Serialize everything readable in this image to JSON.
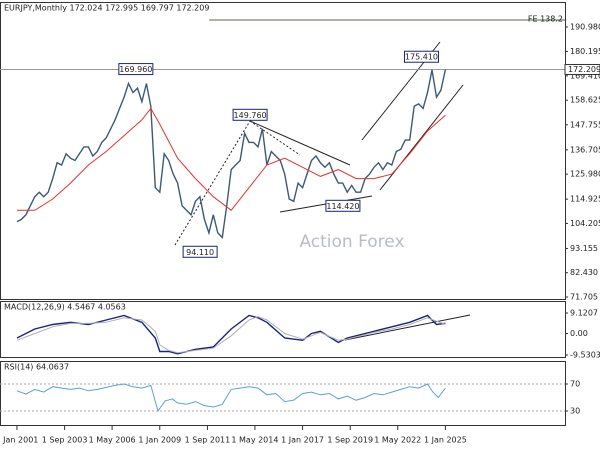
{
  "chart_data": [
    {
      "type": "line",
      "title": "EURJPY,Monthly 172.024 172.995 169.797 172.209",
      "watermark": "Action Forex",
      "xlim": [
        2000.05,
        2031.7
      ],
      "ylim": [
        70.38,
        201.58
      ],
      "yticks": [
        {
          "value": 190.98,
          "label": "190.980"
        },
        180.195,
        {
          "value": 169.41,
          "label": "169.410"
        },
        158.625,
        147.755,
        136.705,
        {
          "value": 125.98,
          "label": "125.980"
        },
        114.925,
        104.205,
        93.155,
        {
          "value": 82.43,
          "label": "82.430"
        },
        71.705
      ],
      "series": [
        {
          "color": "#3d5a73",
          "x": [
            2001,
            2001.25,
            2001.5,
            2001.75,
            2002,
            2002.25,
            2002.5,
            2002.75,
            2003,
            2003.25,
            2003.5,
            2003.75,
            2004,
            2004.25,
            2004.5,
            2004.75,
            2005,
            2005.25,
            2005.5,
            2005.75,
            2006,
            2006.25,
            2006.5,
            2006.75,
            2007,
            2007.25,
            2007.5,
            2007.75,
            2008,
            2008.25,
            2008.5,
            2008.75,
            2009,
            2009.25,
            2009.5,
            2009.75,
            2010,
            2010.25,
            2010.5,
            2010.75,
            2011,
            2011.25,
            2011.5,
            2011.75,
            2012,
            2012.25,
            2012.5,
            2012.75,
            2013,
            2013.25,
            2013.5,
            2013.75,
            2014,
            2014.25,
            2014.5,
            2014.75,
            2015,
            2015.25,
            2015.5,
            2015.75,
            2016,
            2016.25,
            2016.5,
            2016.75,
            2017,
            2017.25,
            2017.5,
            2017.75,
            2018,
            2018.25,
            2018.5,
            2018.75,
            2019,
            2019.25,
            2019.5,
            2019.75,
            2020,
            2020.25,
            2020.5,
            2020.75,
            2021,
            2021.25,
            2021.5,
            2021.75,
            2022,
            2022.25,
            2022.5,
            2022.75,
            2023,
            2023.25,
            2023.5,
            2023.75,
            2024,
            2024.25,
            2024.5,
            2024.75,
            2025
          ],
          "values": [
            105,
            106,
            108,
            112,
            116,
            118,
            116,
            118,
            124,
            131,
            130,
            135,
            133,
            132,
            135,
            138,
            138,
            134,
            136,
            140,
            142,
            146,
            150,
            155,
            160,
            166,
            162,
            164,
            158,
            166,
            156,
            120,
            118,
            135,
            132,
            126,
            122,
            112,
            110,
            108,
            114,
            116,
            106,
            100,
            108,
            100,
            98,
            112,
            128,
            130,
            132,
            144,
            140,
            140,
            138,
            146,
            130,
            136,
            134,
            132,
            126,
            115,
            114,
            122,
            120,
            126,
            132,
            134,
            131,
            129,
            131,
            126,
            122,
            122,
            118,
            121,
            118,
            118,
            124,
            126,
            129,
            131,
            128,
            131,
            130,
            136,
            137,
            141,
            141,
            156,
            157,
            155,
            162,
            172,
            160,
            163,
            172.209
          ]
        },
        {
          "color": "#e8322a",
          "x": [
            2001,
            2002,
            2003,
            2004,
            2005,
            2006,
            2007,
            2008,
            2008.5,
            2009,
            2010,
            2011,
            2012,
            2013,
            2014,
            2015,
            2016,
            2017,
            2018,
            2019,
            2020,
            2021,
            2022,
            2023,
            2024,
            2025
          ],
          "values": [
            110,
            110,
            115,
            122,
            130,
            136,
            143,
            150,
            155,
            148,
            133,
            124,
            116,
            110,
            120,
            130,
            133,
            129,
            125,
            128,
            124,
            124,
            126,
            135,
            145,
            152
          ]
        }
      ],
      "annotations": [
        {
          "x": 2008.5,
          "value": 169.96,
          "label": "169.960"
        },
        {
          "x": 2014.9,
          "value": 149.76,
          "label": "149.760"
        },
        {
          "x": 2012.1,
          "value": 94.11,
          "label": "94.110"
        },
        {
          "x": 2020.1,
          "value": 114.42,
          "label": "114.420"
        },
        {
          "x": 2024.5,
          "value": 175.41,
          "label": "175.410"
        }
      ],
      "levels": [
        {
          "value": 194.07,
          "label": "FE 138.2",
          "x_start": 2011.77,
          "color": "#4a6b4a"
        },
        {
          "value": 172.209,
          "label": "172.209",
          "color": "#999999"
        }
      ]
    },
    {
      "type": "line",
      "title": "MACD(12,26,9) 4.5467 4.0563",
      "xlim": [
        2000.05,
        2031.7
      ],
      "ylim": [
        -10.42,
        14.0
      ],
      "yticks": [
        9.1207,
        {
          "value": 0,
          "label": "0.00"
        },
        -9.5303
      ],
      "series": [
        {
          "color": "#1a237e",
          "x": [
            2001,
            2002,
            2003,
            2004,
            2005,
            2006,
            2007,
            2008,
            2008.75,
            2009,
            2009.5,
            2010,
            2011,
            2012,
            2013,
            2014,
            2014.5,
            2015,
            2016,
            2017,
            2017.5,
            2018,
            2019,
            2019.5,
            2020,
            2021,
            2022,
            2023,
            2024,
            2024.5,
            2025
          ],
          "values": [
            -2,
            2,
            4,
            5,
            4,
            6,
            8,
            5,
            -2,
            -8,
            -8,
            -9,
            -7,
            -6,
            2,
            8,
            7,
            5,
            -2,
            -3,
            0,
            1,
            -4,
            -2,
            -1,
            1,
            3,
            5,
            8,
            4,
            4.5467
          ]
        },
        {
          "color": "#b0b0b0",
          "x": [
            2001,
            2002,
            2003,
            2004,
            2005,
            2006,
            2007,
            2008,
            2008.75,
            2009,
            2009.5,
            2010,
            2011,
            2012,
            2013,
            2014,
            2014.5,
            2015,
            2016,
            2017,
            2017.5,
            2018,
            2019,
            2019.5,
            2020,
            2021,
            2022,
            2023,
            2024,
            2024.5,
            2025
          ],
          "values": [
            -3,
            0,
            3,
            4.5,
            4.5,
            5,
            7,
            6,
            1,
            -5,
            -7.5,
            -8.5,
            -7.5,
            -6.5,
            -1,
            6,
            7.5,
            6,
            0,
            -2.5,
            -1,
            0.5,
            -3,
            -2.5,
            -1.5,
            0.5,
            2,
            4,
            7,
            5.5,
            4.0563
          ]
        }
      ]
    },
    {
      "type": "line",
      "title": "RSI(14) 64.0637",
      "xlim": [
        2000.05,
        2031.7
      ],
      "ylim": [
        9.3,
        102.6
      ],
      "yticks": [
        70,
        30
      ],
      "levels": [
        {
          "value": 70,
          "color": "#aaaaaa"
        },
        {
          "value": 30,
          "color": "#aaaaaa"
        }
      ],
      "series": [
        {
          "color": "#5aa0d8",
          "x": [
            2001,
            2001.5,
            2002,
            2002.5,
            2003,
            2003.5,
            2004,
            2004.5,
            2005,
            2005.5,
            2006,
            2006.5,
            2007,
            2007.5,
            2008,
            2008.5,
            2008.9,
            2009.3,
            2009.7,
            2010,
            2010.5,
            2011,
            2011.5,
            2012,
            2012.5,
            2013,
            2013.5,
            2014,
            2014.5,
            2015,
            2015.5,
            2016,
            2016.5,
            2017,
            2017.5,
            2018,
            2018.5,
            2019,
            2019.5,
            2020,
            2020.5,
            2021,
            2021.5,
            2022,
            2022.5,
            2023,
            2023.5,
            2024,
            2024.3,
            2024.6,
            2025
          ],
          "values": [
            60,
            55,
            62,
            58,
            66,
            64,
            62,
            64,
            60,
            62,
            65,
            68,
            70,
            66,
            64,
            68,
            30,
            45,
            48,
            42,
            40,
            44,
            38,
            36,
            40,
            62,
            64,
            66,
            64,
            54,
            56,
            44,
            46,
            56,
            58,
            54,
            56,
            48,
            52,
            46,
            50,
            56,
            54,
            58,
            62,
            66,
            64,
            70,
            58,
            50,
            64.0637
          ]
        }
      ],
      "xticks": [
        {
          "value": 2001,
          "label": "1 Jan 2001"
        },
        {
          "value": 2003.67,
          "label": "1 Sep 2003"
        },
        {
          "value": 2006.33,
          "label": "1 May 2006"
        },
        {
          "value": 2009,
          "label": "1 Jan 2009"
        },
        {
          "value": 2011.67,
          "label": "1 Sep 2011"
        },
        {
          "value": 2014.33,
          "label": "1 May 2014"
        },
        {
          "value": 2017,
          "label": "1 Jan 2017"
        },
        {
          "value": 2019.67,
          "label": "1 Sep 2019"
        },
        {
          "value": 2022.33,
          "label": "1 May 2022"
        },
        {
          "value": 2025,
          "label": "1 Jan 2025"
        }
      ]
    }
  ]
}
